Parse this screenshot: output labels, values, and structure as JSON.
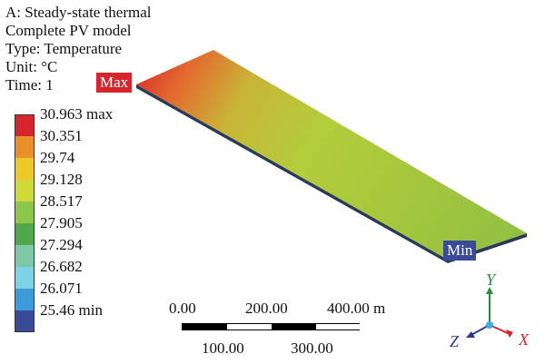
{
  "header": {
    "line1": "A: Steady-state thermal",
    "line2": "Complete PV model",
    "line3": "Type: Temperature",
    "line4": "Unit: °C",
    "line5": "Time: 1"
  },
  "legend": {
    "items": [
      {
        "label": "30.963 max",
        "color": "#d7262b"
      },
      {
        "label": "30.351",
        "color": "#e9902a"
      },
      {
        "label": "29.74",
        "color": "#efc82a"
      },
      {
        "label": "29.128",
        "color": "#cfd93a"
      },
      {
        "label": "28.517",
        "color": "#8cc64a"
      },
      {
        "label": "27.905",
        "color": "#4fa84a"
      },
      {
        "label": "27.294",
        "color": "#7ec9a5"
      },
      {
        "label": "26.682",
        "color": "#7fd1e6"
      },
      {
        "label": "26.071",
        "color": "#3c9bd8"
      },
      {
        "label": "25.46 min",
        "color": "#3a4a97"
      }
    ]
  },
  "tags": {
    "max": "Max",
    "min": "Min"
  },
  "scale": {
    "top_left": "0.00",
    "top_mid": "200.00",
    "top_right": "400.00 m",
    "bottom_left": "100.00",
    "bottom_right": "300.00"
  },
  "triad": {
    "x": "X",
    "y": "Y",
    "z": "Z",
    "x_color": "#d7262b",
    "y_color": "#2a8a3a",
    "z_color": "#2d3a8c"
  }
}
